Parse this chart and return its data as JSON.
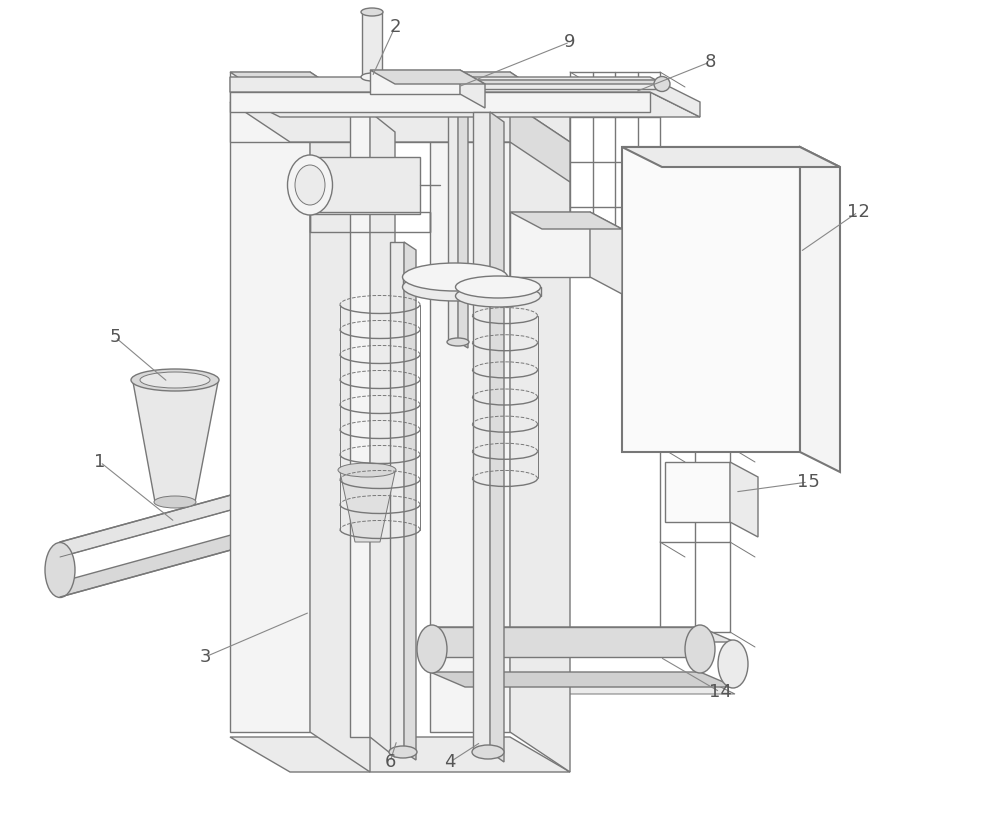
{
  "bg_color": "#ffffff",
  "lc": "#aaaaaa",
  "lc_dark": "#777777",
  "lw": 1.0,
  "lw_thin": 0.7,
  "lw_thick": 1.5,
  "label_fontsize": 13,
  "label_color": "#555555"
}
